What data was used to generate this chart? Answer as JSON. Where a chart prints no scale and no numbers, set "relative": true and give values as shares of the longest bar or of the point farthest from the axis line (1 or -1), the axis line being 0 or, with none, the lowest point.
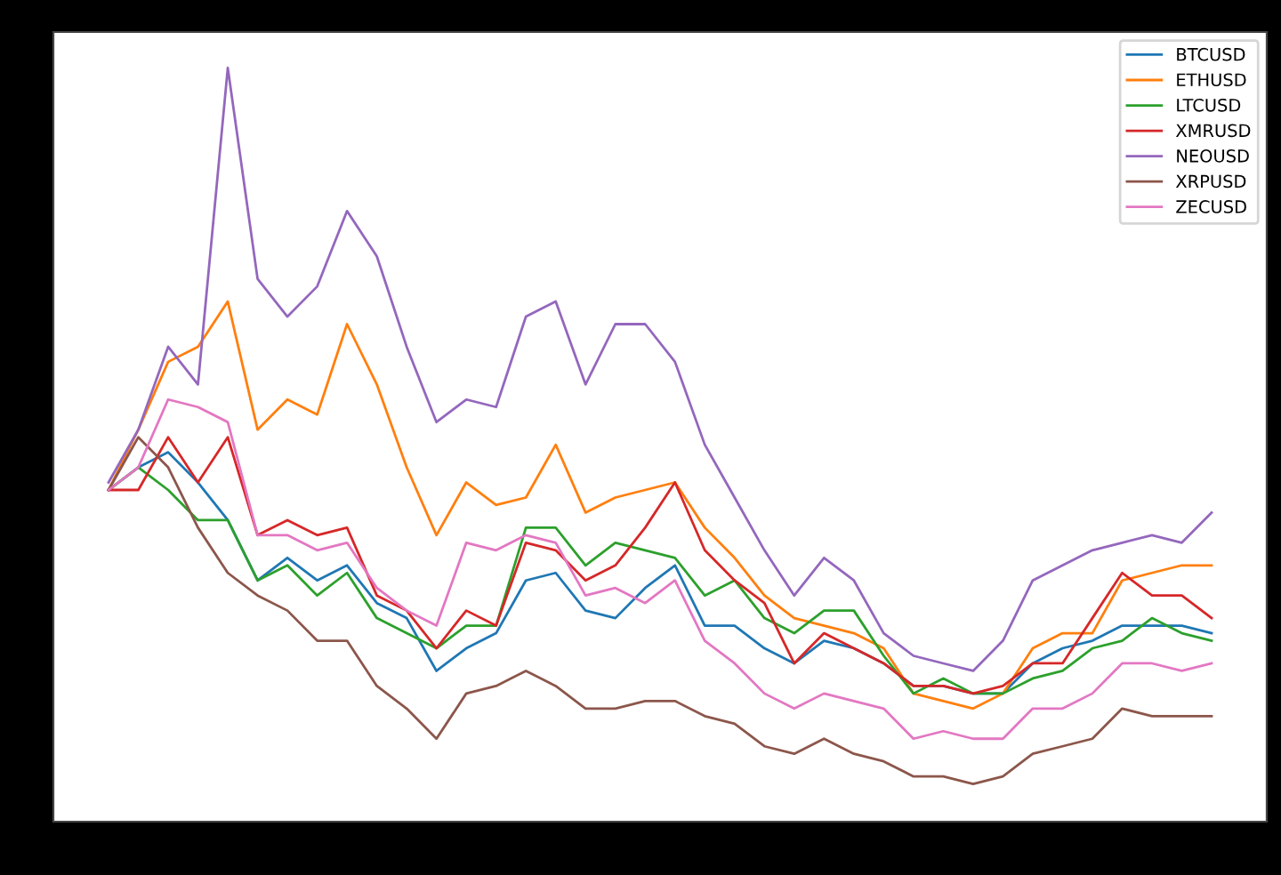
{
  "chart_data": {
    "type": "line",
    "relative": true,
    "legend": "top right",
    "grid": false,
    "categories": [
      null,
      null,
      null,
      null,
      null,
      null,
      null,
      null,
      null,
      null,
      null,
      null,
      null,
      null,
      null,
      null,
      null,
      null,
      null,
      null,
      null,
      null,
      null,
      null,
      null,
      null,
      null,
      null,
      null,
      null,
      null,
      null,
      null,
      null,
      null,
      null,
      null,
      null
    ],
    "series": [
      {
        "name": "BTCUSD",
        "color": "#1f77b4",
        "values": [
          0.44,
          0.47,
          0.49,
          0.45,
          0.4,
          0.32,
          0.35,
          0.32,
          0.34,
          0.29,
          0.27,
          0.2,
          0.23,
          0.25,
          0.32,
          0.33,
          0.28,
          0.27,
          0.31,
          0.34,
          0.26,
          0.26,
          0.23,
          0.21,
          0.24,
          0.23,
          0.21,
          0.18,
          0.18,
          0.17,
          0.17,
          0.21,
          0.23,
          0.24,
          0.26,
          0.26,
          0.26,
          0.25
        ]
      },
      {
        "name": "ETHUSD",
        "color": "#ff7f0e",
        "values": [
          0.44,
          0.52,
          0.61,
          0.63,
          0.69,
          0.52,
          0.56,
          0.54,
          0.66,
          0.58,
          0.47,
          0.38,
          0.45,
          0.42,
          0.43,
          0.5,
          0.41,
          0.43,
          0.44,
          0.45,
          0.39,
          0.35,
          0.3,
          0.27,
          0.26,
          0.25,
          0.23,
          0.17,
          0.16,
          0.15,
          0.17,
          0.23,
          0.25,
          0.25,
          0.32,
          0.33,
          0.34,
          0.34
        ]
      },
      {
        "name": "LTCUSD",
        "color": "#2ca02c",
        "values": [
          0.44,
          0.47,
          0.44,
          0.4,
          0.4,
          0.32,
          0.34,
          0.3,
          0.33,
          0.27,
          0.25,
          0.23,
          0.26,
          0.26,
          0.39,
          0.39,
          0.34,
          0.37,
          0.36,
          0.35,
          0.3,
          0.32,
          0.27,
          0.25,
          0.28,
          0.28,
          0.22,
          0.17,
          0.19,
          0.17,
          0.17,
          0.19,
          0.2,
          0.23,
          0.24,
          0.27,
          0.25,
          0.24
        ]
      },
      {
        "name": "XMRUSD",
        "color": "#d62728",
        "values": [
          0.44,
          0.44,
          0.51,
          0.45,
          0.51,
          0.38,
          0.4,
          0.38,
          0.39,
          0.3,
          0.28,
          0.23,
          0.28,
          0.26,
          0.37,
          0.36,
          0.32,
          0.34,
          0.39,
          0.45,
          0.36,
          0.32,
          0.29,
          0.21,
          0.25,
          0.23,
          0.21,
          0.18,
          0.18,
          0.17,
          0.18,
          0.21,
          0.21,
          0.27,
          0.33,
          0.3,
          0.3,
          0.27
        ]
      },
      {
        "name": "NEOUSD",
        "color": "#9467bd",
        "values": [
          0.45,
          0.52,
          0.63,
          0.58,
          1,
          0.72,
          0.67,
          0.71,
          0.81,
          0.75,
          0.63,
          0.53,
          0.56,
          0.55,
          0.67,
          0.69,
          0.58,
          0.66,
          0.66,
          0.61,
          0.5,
          0.43,
          0.36,
          0.3,
          0.35,
          0.32,
          0.25,
          0.22,
          0.21,
          0.2,
          0.24,
          0.32,
          0.34,
          0.36,
          0.37,
          0.38,
          0.37,
          0.41
        ]
      },
      {
        "name": "XRPUSD",
        "color": "#8c564b",
        "values": [
          0.44,
          0.51,
          0.47,
          0.39,
          0.33,
          0.3,
          0.28,
          0.24,
          0.24,
          0.18,
          0.15,
          0.11,
          0.17,
          0.18,
          0.2,
          0.18,
          0.15,
          0.15,
          0.16,
          0.16,
          0.14,
          0.13,
          0.1,
          0.09,
          0.11,
          0.09,
          0.08,
          0.06,
          0.06,
          0.05,
          0.06,
          0.09,
          0.1,
          0.11,
          0.15,
          0.14,
          0.14,
          0.14
        ]
      },
      {
        "name": "ZECUSD",
        "color": "#e377c2",
        "values": [
          0.44,
          0.47,
          0.56,
          0.55,
          0.53,
          0.38,
          0.38,
          0.36,
          0.37,
          0.31,
          0.28,
          0.26,
          0.37,
          0.36,
          0.38,
          0.37,
          0.3,
          0.31,
          0.29,
          0.32,
          0.24,
          0.21,
          0.17,
          0.15,
          0.17,
          0.16,
          0.15,
          0.11,
          0.12,
          0.11,
          0.11,
          0.15,
          0.15,
          0.17,
          0.21,
          0.21,
          0.2,
          0.21
        ]
      }
    ]
  }
}
